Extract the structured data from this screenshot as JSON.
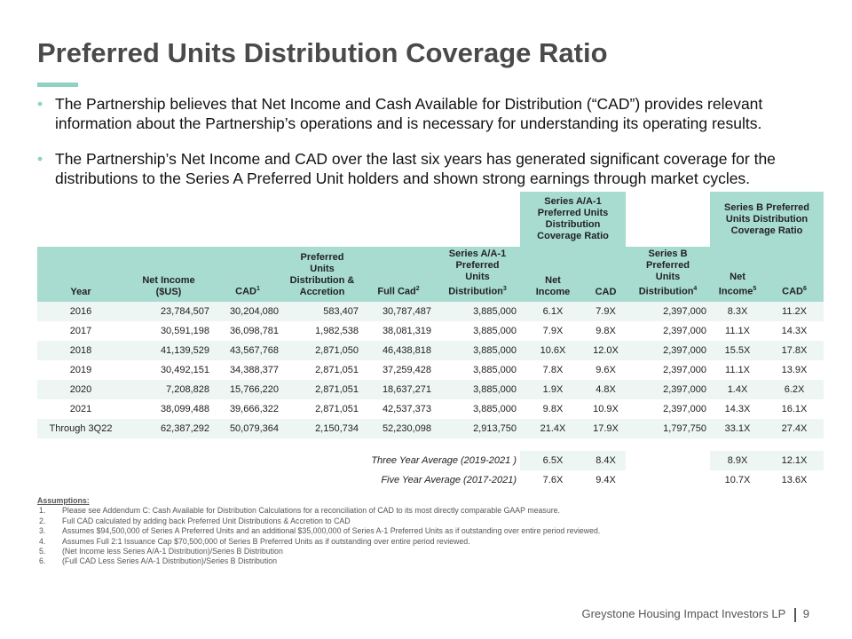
{
  "title": "Preferred Units Distribution Coverage Ratio",
  "bullets": [
    "The Partnership believes that Net Income and Cash Available for Distribution (“CAD”) provides relevant information about the Partnership’s operations and is necessary for understanding its operating results.",
    "The Partnership’s Net Income and CAD over the last six years has generated significant coverage for the distributions to the Series A Preferred Unit holders and shown strong earnings through market cycles."
  ],
  "table": {
    "group_headers": [
      {
        "col": 6,
        "span": 2,
        "lines": [
          "Series A/A-1",
          "Preferred  Units",
          "Distribution",
          "Coverage Ratio"
        ]
      },
      {
        "col": 9,
        "span": 2,
        "lines": [
          "Series B Preferred",
          "Units Distribution",
          "Coverage Ratio"
        ]
      }
    ],
    "columns": [
      {
        "lines": [
          "Year"
        ]
      },
      {
        "lines": [
          "Net Income",
          "($US)"
        ]
      },
      {
        "lines": [
          "CAD"
        ],
        "sup": "1"
      },
      {
        "lines": [
          "Preferred",
          "Units",
          "Distribution &",
          "Accretion"
        ]
      },
      {
        "lines": [
          "Full Cad"
        ],
        "sup": "2"
      },
      {
        "lines": [
          "Series A/A-1",
          "Preferred",
          "Units",
          "Distribution"
        ],
        "sup": "3"
      },
      {
        "lines": [
          "Net",
          "Income"
        ]
      },
      {
        "lines": [
          "CAD"
        ]
      },
      {
        "lines": [
          "Series B",
          "Preferred",
          "Units",
          "Distribution"
        ],
        "sup": "4"
      },
      {
        "lines": [
          "Net",
          "Income"
        ],
        "sup": "5"
      },
      {
        "lines": [
          "CAD"
        ],
        "sup": "6"
      }
    ],
    "rows": [
      [
        "2016",
        "23,784,507",
        "30,204,080",
        "583,407",
        "30,787,487",
        "3,885,000",
        "6.1X",
        "7.9X",
        "2,397,000",
        "8.3X",
        "11.2X"
      ],
      [
        "2017",
        "30,591,198",
        "36,098,781",
        "1,982,538",
        "38,081,319",
        "3,885,000",
        "7.9X",
        "9.8X",
        "2,397,000",
        "11.1X",
        "14.3X"
      ],
      [
        "2018",
        "41,139,529",
        "43,567,768",
        "2,871,050",
        "46,438,818",
        "3,885,000",
        "10.6X",
        "12.0X",
        "2,397,000",
        "15.5X",
        "17.8X"
      ],
      [
        "2019",
        "30,492,151",
        "34,388,377",
        "2,871,051",
        "37,259,428",
        "3,885,000",
        "7.8X",
        "9.6X",
        "2,397,000",
        "11.1X",
        "13.9X"
      ],
      [
        "2020",
        "7,208,828",
        "15,766,220",
        "2,871,051",
        "18,637,271",
        "3,885,000",
        "1.9X",
        "4.8X",
        "2,397,000",
        "1.4X",
        "6.2X"
      ],
      [
        "2021",
        "38,099,488",
        "39,666,322",
        "2,871,051",
        "42,537,373",
        "3,885,000",
        "9.8X",
        "10.9X",
        "2,397,000",
        "14.3X",
        "16.1X"
      ],
      [
        "Through 3Q22",
        "62,387,292",
        "50,079,364",
        "2,150,734",
        "52,230,098",
        "2,913,750",
        "21.4X",
        "17.9X",
        "1,797,750",
        "33.1X",
        "27.4X"
      ]
    ],
    "averages": [
      {
        "label": "Three Year Average (2019-2021 )",
        "values": [
          "6.5X",
          "8.4X",
          "8.9X",
          "12.1X"
        ]
      },
      {
        "label": "Five Year Average (2017-2021)",
        "values": [
          "7.6X",
          "9.4X",
          "10.7X",
          "13.6X"
        ]
      }
    ]
  },
  "assumptions": {
    "title": "Assumptions:",
    "items": [
      {
        "num": "1.",
        "text": "Please see Addendum C: Cash Available for Distribution Calculations for a reconciliation of CAD to its most directly comparable GAAP measure."
      },
      {
        "num": "2.",
        "text": "Full CAD calculated by adding back Preferred Unit Distributions & Accretion to CAD"
      },
      {
        "num": "3.",
        "text": "Assumes $94,500,000 of Series A Preferred Units and an additional $35,000,000 of Series A-1 Preferred Units as if outstanding over entire period reviewed."
      },
      {
        "num": "4.",
        "text": "Assumes Full 2:1 Issuance Cap $70,500,000 of Series B Preferred Units as if outstanding over entire period reviewed."
      },
      {
        "num": "5.",
        "text": "(Net Income less Series A/A-1 Distribution)/Series B Distribution"
      },
      {
        "num": "6.",
        "text": "(Full CAD Less Series A/A-1 Distribution)/Series B Distribution"
      }
    ]
  },
  "footer": {
    "company": "Greystone Housing Impact Investors LP",
    "page": "9"
  }
}
